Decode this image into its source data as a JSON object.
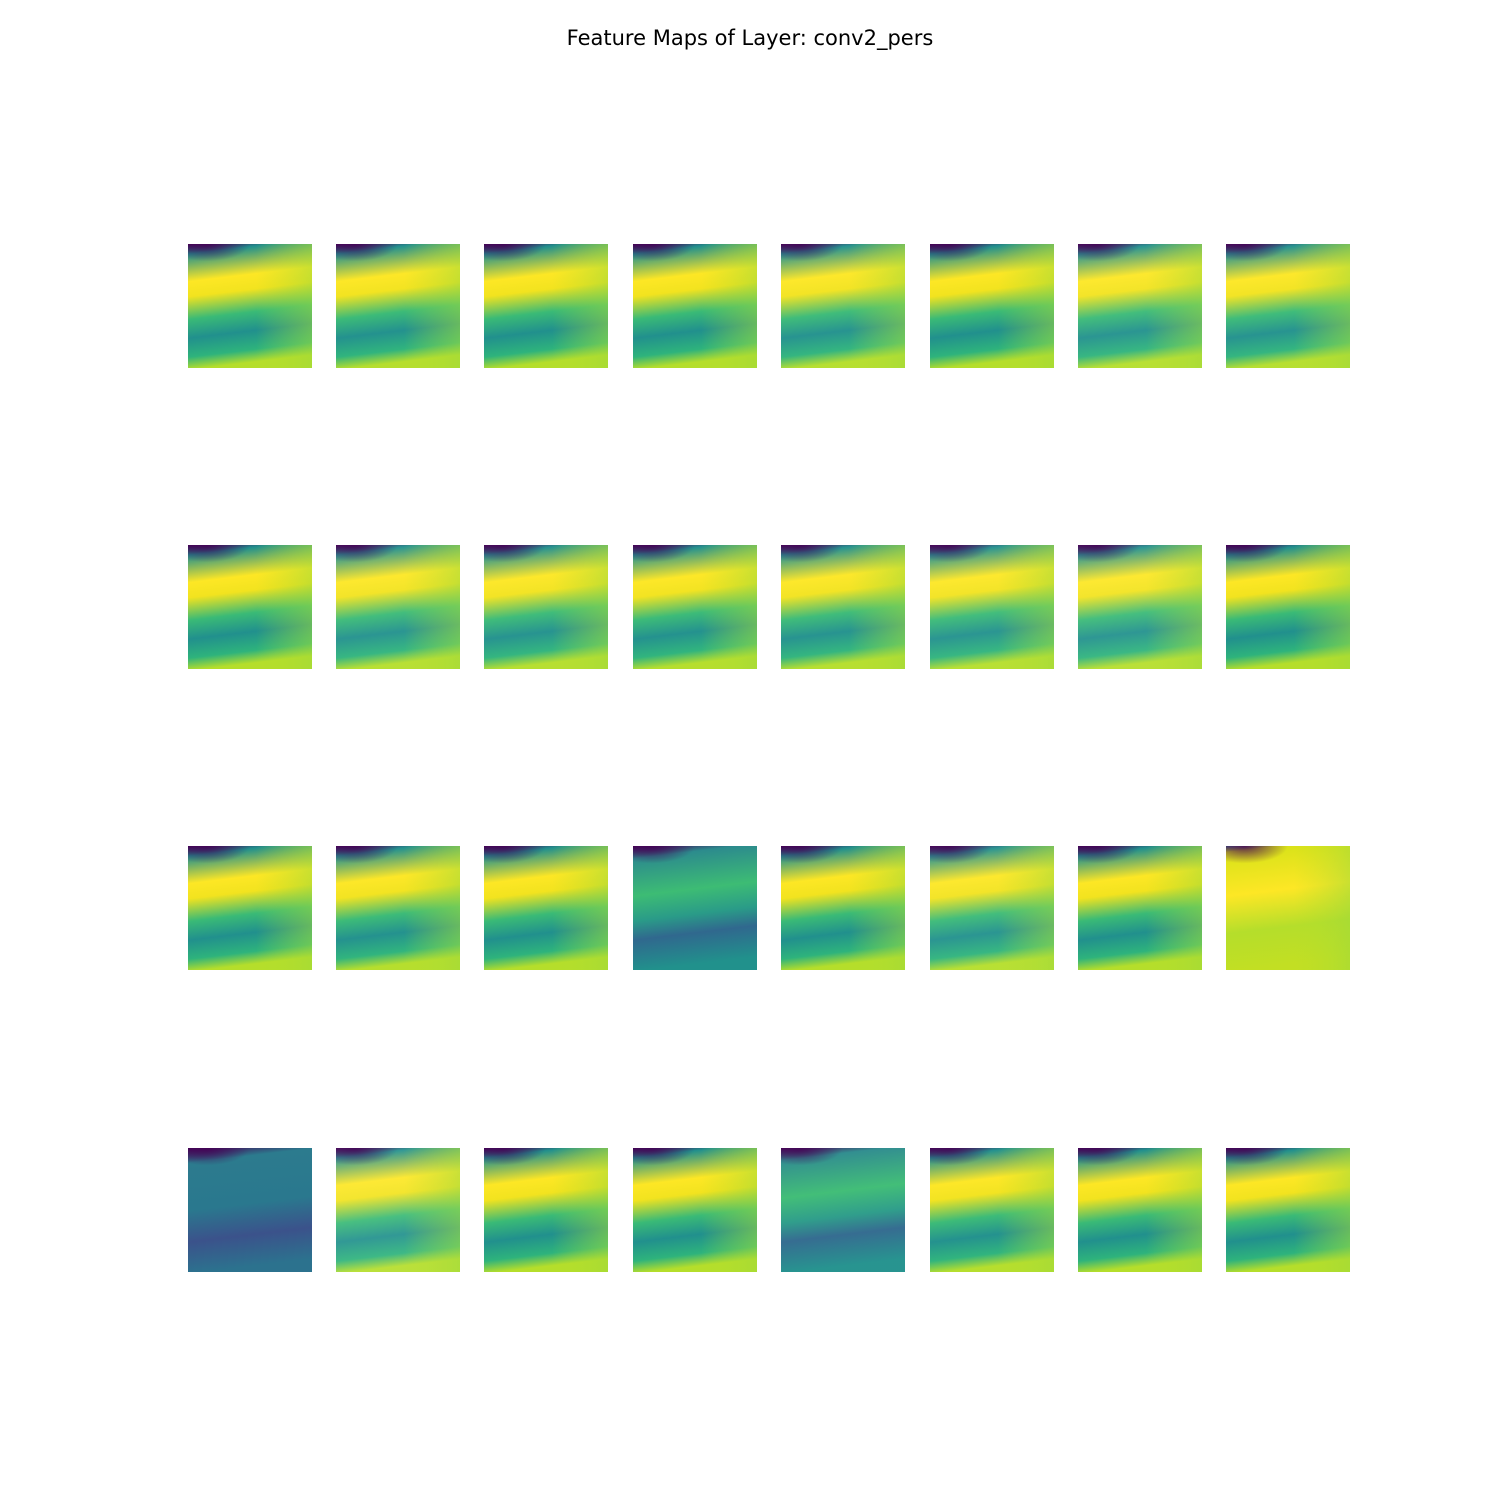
{
  "chart_data": {
    "type": "heatmap",
    "title": "Feature Maps of Layer: conv2_pers",
    "rows": 4,
    "cols": 8,
    "colormap": "viridis",
    "axes_visible": false,
    "maps": [
      {
        "variant": "standard",
        "intensity": 1.0
      },
      {
        "variant": "standard",
        "intensity": 0.96
      },
      {
        "variant": "standard",
        "intensity": 1.0
      },
      {
        "variant": "standard",
        "intensity": 1.0
      },
      {
        "variant": "standard",
        "intensity": 0.9
      },
      {
        "variant": "standard",
        "intensity": 1.0
      },
      {
        "variant": "standard",
        "intensity": 0.85
      },
      {
        "variant": "standard",
        "intensity": 0.9
      },
      {
        "variant": "standard",
        "intensity": 1.0
      },
      {
        "variant": "standard",
        "intensity": 0.85
      },
      {
        "variant": "standard",
        "intensity": 0.9
      },
      {
        "variant": "standard",
        "intensity": 0.95
      },
      {
        "variant": "standard",
        "intensity": 0.9
      },
      {
        "variant": "standard",
        "intensity": 0.85
      },
      {
        "variant": "standard",
        "intensity": 0.8
      },
      {
        "variant": "standard",
        "intensity": 1.0
      },
      {
        "variant": "standard",
        "intensity": 1.0
      },
      {
        "variant": "standard",
        "intensity": 0.95
      },
      {
        "variant": "standard",
        "intensity": 1.0
      },
      {
        "variant": "muted",
        "intensity": 1.0
      },
      {
        "variant": "standard",
        "intensity": 1.0
      },
      {
        "variant": "standard",
        "intensity": 0.85
      },
      {
        "variant": "standard",
        "intensity": 1.0
      },
      {
        "variant": "bright",
        "intensity": 1.0
      },
      {
        "variant": "dark",
        "intensity": 1.0
      },
      {
        "variant": "standard",
        "intensity": 0.75
      },
      {
        "variant": "standard",
        "intensity": 1.0
      },
      {
        "variant": "standard",
        "intensity": 1.0
      },
      {
        "variant": "muted",
        "intensity": 0.9
      },
      {
        "variant": "standard",
        "intensity": 0.95
      },
      {
        "variant": "standard",
        "intensity": 1.0
      },
      {
        "variant": "standard",
        "intensity": 1.0
      }
    ]
  }
}
